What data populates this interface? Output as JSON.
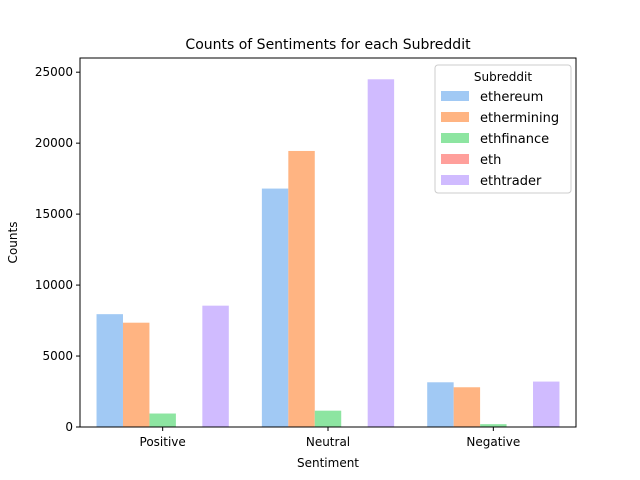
{
  "chart_data": {
    "type": "bar",
    "title": "Counts of Sentiments for each Subreddit",
    "xlabel": "Sentiment",
    "ylabel": "Counts",
    "categories": [
      "Positive",
      "Neutral",
      "Negative"
    ],
    "ylim": [
      0,
      26000
    ],
    "yticks": [
      0,
      5000,
      10000,
      15000,
      20000,
      25000
    ],
    "grid": false,
    "legend": {
      "title": "Subreddit",
      "position": "top-right"
    },
    "series": [
      {
        "name": "ethereum",
        "color": "#a1c9f4",
        "values": [
          7950,
          16800,
          3150
        ]
      },
      {
        "name": "ethermining",
        "color": "#ffb482",
        "values": [
          7350,
          19450,
          2800
        ]
      },
      {
        "name": "ethfinance",
        "color": "#8de5a1",
        "values": [
          950,
          1150,
          200
        ]
      },
      {
        "name": "eth",
        "color": "#ff9f9b",
        "values": [
          0,
          0,
          0
        ]
      },
      {
        "name": "ethtrader",
        "color": "#d0bbff",
        "values": [
          8550,
          24500,
          3200
        ]
      }
    ]
  }
}
